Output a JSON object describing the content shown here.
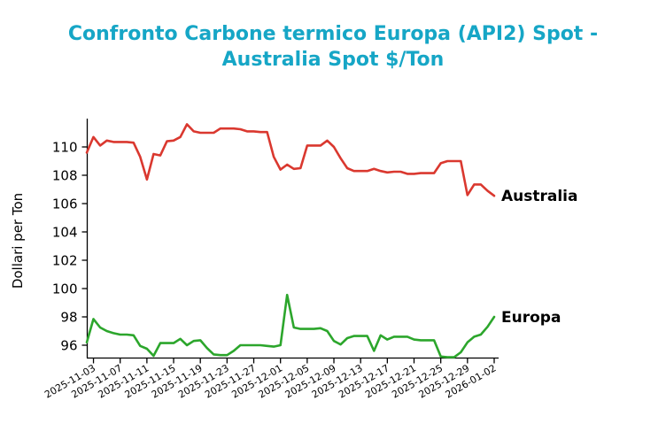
{
  "figure": {
    "title_line1": "Confronto Carbone termico Europa (API2) Spot -",
    "title_line2": "Australia Spot $/Ton",
    "title_color": "#16a6c6",
    "axis_color": "#000000"
  },
  "chart_data": {
    "type": "line",
    "title": "Confronto Carbone termico Europa (API2) Spot - Australia Spot $/Ton",
    "xlabel": "",
    "ylabel": "Dollari per Ton",
    "ylim": [
      95.1,
      112.0
    ],
    "grid": false,
    "legend_position": "labels-at-line-end",
    "yticks": [
      96,
      98,
      100,
      102,
      104,
      106,
      108,
      110
    ],
    "xtick_labels": [
      "2025-11-03",
      "2025-11-07",
      "2025-11-11",
      "2025-11-15",
      "2025-11-19",
      "2025-11-23",
      "2025-11-27",
      "2025-12-01",
      "2025-12-05",
      "2025-12-09",
      "2025-12-13",
      "2025-12-17",
      "2025-12-21",
      "2025-12-25",
      "2025-12-29",
      "2026-01-02"
    ],
    "xtick_indices": [
      1,
      5,
      9,
      13,
      17,
      21,
      25,
      29,
      33,
      37,
      41,
      45,
      49,
      53,
      57,
      61
    ],
    "x_dates": [
      "2025-11-02",
      "2025-11-03",
      "2025-11-04",
      "2025-11-05",
      "2025-11-06",
      "2025-11-07",
      "2025-11-08",
      "2025-11-09",
      "2025-11-10",
      "2025-11-11",
      "2025-11-12",
      "2025-11-13",
      "2025-11-14",
      "2025-11-15",
      "2025-11-16",
      "2025-11-17",
      "2025-11-18",
      "2025-11-19",
      "2025-11-20",
      "2025-11-21",
      "2025-11-22",
      "2025-11-23",
      "2025-11-24",
      "2025-11-25",
      "2025-11-26",
      "2025-11-27",
      "2025-11-28",
      "2025-11-29",
      "2025-11-30",
      "2025-12-01",
      "2025-12-02",
      "2025-12-03",
      "2025-12-04",
      "2025-12-05",
      "2025-12-06",
      "2025-12-07",
      "2025-12-08",
      "2025-12-09",
      "2025-12-10",
      "2025-12-11",
      "2025-12-12",
      "2025-12-13",
      "2025-12-14",
      "2025-12-15",
      "2025-12-16",
      "2025-12-17",
      "2025-12-18",
      "2025-12-19",
      "2025-12-20",
      "2025-12-21",
      "2025-12-22",
      "2025-12-23",
      "2025-12-24",
      "2025-12-25",
      "2025-12-26",
      "2025-12-27",
      "2025-12-28",
      "2025-12-29",
      "2025-12-30",
      "2025-12-31",
      "2026-01-01",
      "2026-01-02"
    ],
    "series": [
      {
        "name": "Australia",
        "color": "#da382f",
        "values": [
          109.6,
          110.7,
          110.1,
          110.45,
          110.35,
          110.35,
          110.35,
          110.3,
          109.3,
          107.7,
          109.5,
          109.4,
          110.4,
          110.45,
          110.7,
          111.6,
          111.1,
          111.0,
          111.0,
          111.0,
          111.3,
          111.3,
          111.3,
          111.25,
          111.1,
          111.1,
          111.05,
          111.05,
          109.3,
          108.4,
          108.75,
          108.45,
          108.5,
          110.1,
          110.1,
          110.1,
          110.45,
          110.0,
          109.2,
          108.5,
          108.3,
          108.3,
          108.3,
          108.45,
          108.3,
          108.2,
          108.25,
          108.25,
          108.1,
          108.1,
          108.15,
          108.15,
          108.15,
          108.85,
          109.0,
          109.0,
          109.0,
          106.6,
          107.35,
          107.35,
          106.9,
          106.55
        ]
      },
      {
        "name": "Europa",
        "color": "#2ca62c",
        "values": [
          96.2,
          97.85,
          97.25,
          97.0,
          96.85,
          96.75,
          96.75,
          96.7,
          95.95,
          95.75,
          95.25,
          96.15,
          96.15,
          96.15,
          96.45,
          96.0,
          96.3,
          96.35,
          95.8,
          95.35,
          95.3,
          95.3,
          95.6,
          96.0,
          96.0,
          96.0,
          96.0,
          95.95,
          95.9,
          96.0,
          99.55,
          97.25,
          97.15,
          97.15,
          97.15,
          97.2,
          97.0,
          96.3,
          96.05,
          96.5,
          96.65,
          96.65,
          96.65,
          95.6,
          96.7,
          96.4,
          96.6,
          96.6,
          96.6,
          96.4,
          96.35,
          96.35,
          96.35,
          95.2,
          95.15,
          95.15,
          95.5,
          96.2,
          96.6,
          96.75,
          97.3,
          98.0
        ]
      }
    ]
  }
}
